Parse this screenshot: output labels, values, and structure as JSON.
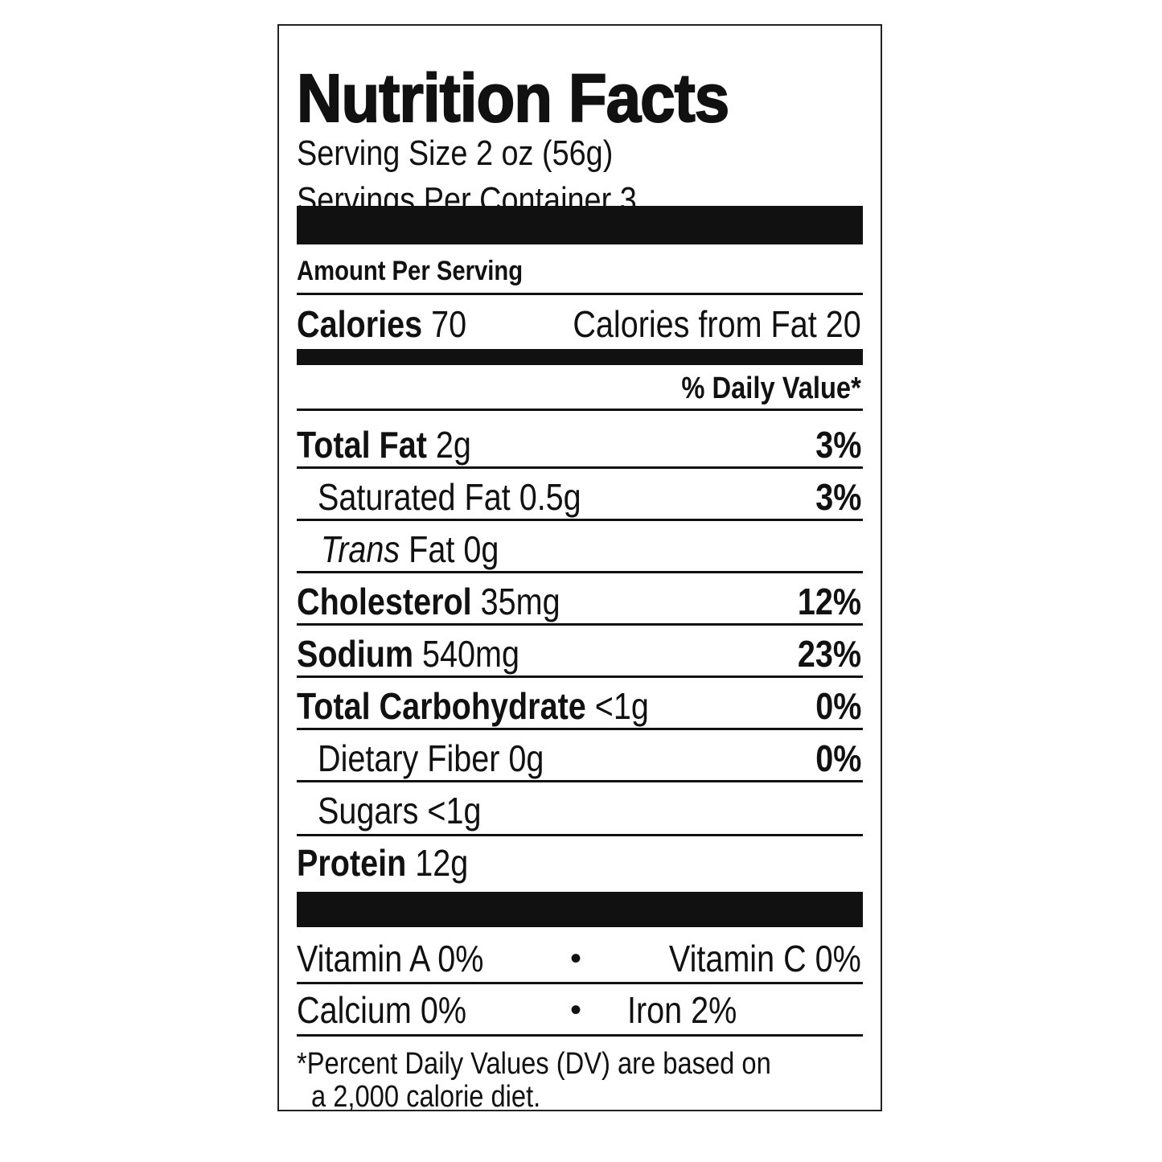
{
  "title": "Nutrition Facts",
  "serving_size": "Serving Size 2 oz (56g)",
  "servings_per_container": "Servings Per Container 3",
  "amount_per_serving": "Amount Per Serving",
  "calories": {
    "label": "Calories",
    "value": "70",
    "from_fat": "Calories from Fat 20"
  },
  "daily_value_header": "% Daily Value*",
  "nutrients": [
    {
      "label": "Total Fat",
      "amount": "2g",
      "dv": "3%"
    },
    {
      "label": "Saturated Fat",
      "amount": "0.5g",
      "dv": "3%"
    },
    {
      "label_italic": "Trans",
      "label": "Fat",
      "amount": "0g"
    },
    {
      "label": "Cholesterol",
      "amount": "35mg",
      "dv": "12%"
    },
    {
      "label": "Sodium",
      "amount": "540mg",
      "dv": "23%"
    },
    {
      "label": "Total Carbohydrate",
      "amount": "<1g",
      "dv": "0%"
    },
    {
      "label": "Dietary Fiber",
      "amount": "0g",
      "dv": "0%"
    },
    {
      "label": "Sugars",
      "amount": "<1g"
    },
    {
      "label": "Protein",
      "amount": "12g"
    }
  ],
  "vitamins": [
    {
      "left": "Vitamin A 0%",
      "right": "Vitamin C 0%"
    },
    {
      "left": "Calcium 0%",
      "right": "Iron 2%"
    }
  ],
  "bullet": "•",
  "footnote": [
    "*Percent Daily Values (DV) are based on",
    "a 2,000 calorie diet."
  ]
}
